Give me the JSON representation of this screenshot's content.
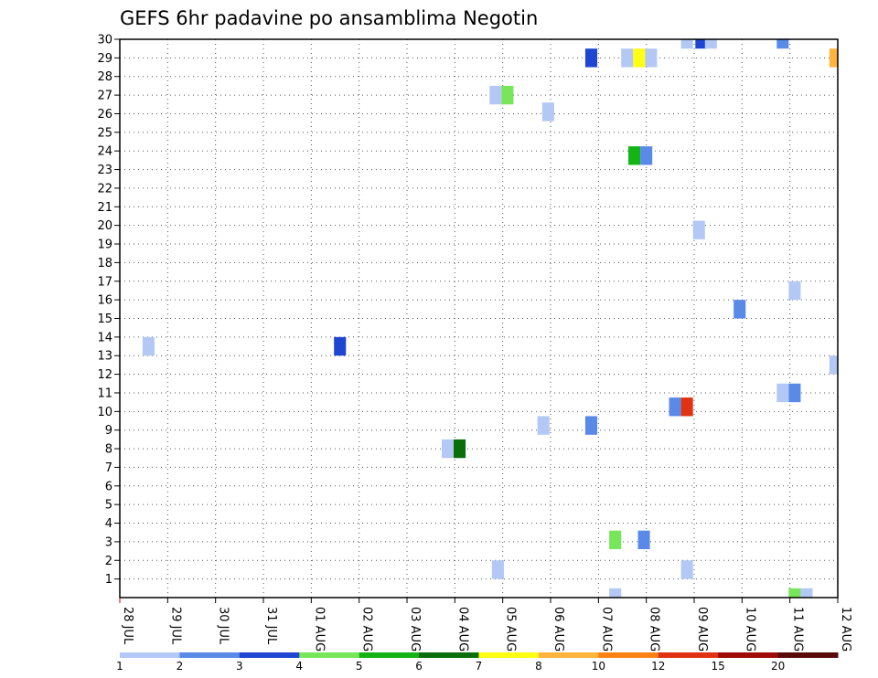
{
  "chart_data": {
    "type": "heatmap",
    "title": "GEFS 6hr padavine po ansamblima Negotin",
    "xlabel": "",
    "ylabel": "",
    "x_ticks": [
      "28 JUL",
      "29 JUL",
      "30 JUL",
      "31 JUL",
      "01 AUG",
      "02 AUG",
      "03 AUG",
      "04 AUG",
      "05 AUG",
      "06 AUG",
      "07 AUG",
      "08 AUG",
      "09 AUG",
      "10 AUG",
      "11 AUG",
      "12 AUG"
    ],
    "y_ticks": [
      1,
      2,
      3,
      4,
      5,
      6,
      7,
      8,
      9,
      10,
      11,
      12,
      13,
      14,
      15,
      16,
      17,
      18,
      19,
      20,
      21,
      22,
      23,
      24,
      25,
      26,
      27,
      28,
      29,
      30
    ],
    "xlim": [
      0,
      15
    ],
    "ylim": [
      0,
      30
    ],
    "grid": true,
    "colorbar": {
      "colors": [
        "#b4c8f5",
        "#5a8ae8",
        "#1e46d2",
        "#78e65a",
        "#14b414",
        "#0a6e0a",
        "#ffff14",
        "#ffb43c",
        "#fa8214",
        "#e13214",
        "#a00a0a",
        "#5a0a0a"
      ],
      "labels": [
        "1",
        "2",
        "3",
        "4",
        "5",
        "6",
        "7",
        "8",
        "10",
        "12",
        "15",
        "20"
      ]
    },
    "cells": [
      {
        "day": 0.6,
        "member": 13.5,
        "bin": 0
      },
      {
        "day": 4.6,
        "member": 13.5,
        "bin": 2
      },
      {
        "day": 6.85,
        "member": 8,
        "bin": 0
      },
      {
        "day": 7.1,
        "member": 8,
        "bin": 5
      },
      {
        "day": 7.9,
        "member": 1.5,
        "bin": 0
      },
      {
        "day": 7.85,
        "member": 27,
        "bin": 0
      },
      {
        "day": 8.1,
        "member": 27,
        "bin": 3
      },
      {
        "day": 8.85,
        "member": 9.25,
        "bin": 0
      },
      {
        "day": 8.95,
        "member": 26.1,
        "bin": 0
      },
      {
        "day": 9.85,
        "member": 9.25,
        "bin": 1
      },
      {
        "day": 9.85,
        "member": 29,
        "bin": 2
      },
      {
        "day": 10.35,
        "member": 3.1,
        "bin": 3
      },
      {
        "day": 10.35,
        "member": 0,
        "bin": 0
      },
      {
        "day": 10.6,
        "member": 29,
        "bin": 0
      },
      {
        "day": 10.75,
        "member": 23.75,
        "bin": 4
      },
      {
        "day": 10.85,
        "member": 29,
        "bin": 6
      },
      {
        "day": 11.0,
        "member": 23.75,
        "bin": 1
      },
      {
        "day": 10.95,
        "member": 3.1,
        "bin": 1
      },
      {
        "day": 11.1,
        "member": 29,
        "bin": 0
      },
      {
        "day": 11.6,
        "member": 10.25,
        "bin": 1
      },
      {
        "day": 11.85,
        "member": 10.25,
        "bin": 9
      },
      {
        "day": 11.85,
        "member": 1.5,
        "bin": 0
      },
      {
        "day": 11.85,
        "member": 30,
        "bin": 0
      },
      {
        "day": 12.15,
        "member": 30,
        "bin": 2
      },
      {
        "day": 12.35,
        "member": 30,
        "bin": 0
      },
      {
        "day": 12.1,
        "member": 19.75,
        "bin": 0
      },
      {
        "day": 12.95,
        "member": 15.5,
        "bin": 1
      },
      {
        "day": 13.85,
        "member": 30,
        "bin": 1
      },
      {
        "day": 13.85,
        "member": 11,
        "bin": 0
      },
      {
        "day": 14.1,
        "member": 11,
        "bin": 1
      },
      {
        "day": 14.1,
        "member": 16.5,
        "bin": 0
      },
      {
        "day": 14.1,
        "member": 0,
        "bin": 3
      },
      {
        "day": 14.35,
        "member": 0,
        "bin": 0
      },
      {
        "day": 14.95,
        "member": 29,
        "bin": 7
      },
      {
        "day": 14.95,
        "member": 12.5,
        "bin": 0
      }
    ]
  }
}
